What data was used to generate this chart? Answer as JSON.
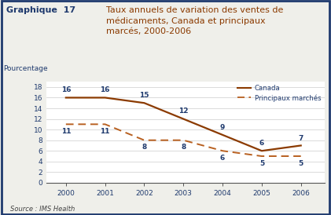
{
  "years": [
    2000,
    2001,
    2002,
    2003,
    2004,
    2005,
    2006
  ],
  "canada": [
    16,
    16,
    15,
    12,
    9,
    6,
    7
  ],
  "marches": [
    11,
    11,
    8,
    8,
    6,
    5,
    5
  ],
  "canada_labels": [
    "16",
    "16",
    "15",
    "12",
    "9",
    "6",
    "7"
  ],
  "marches_labels": [
    "11",
    "11",
    "8",
    "8",
    "6",
    "5",
    "5"
  ],
  "canada_color": "#8B3A00",
  "marches_color": "#B86020",
  "title_bold": "Graphique  17",
  "title_rest": "Taux annuels de variation des ventes de\nmédicaments, Canada et principaux\nmarcés, 2000-2006",
  "ylabel": "Pourcentage",
  "source": "Source : IMS Health",
  "legend_canada": "Canada",
  "legend_marches": "Principaux marchés",
  "ylim": [
    0,
    19
  ],
  "yticks": [
    0,
    2,
    4,
    6,
    8,
    10,
    12,
    14,
    16,
    18
  ],
  "bg_color": "#EFEFEA",
  "plot_bg": "#FFFFFF",
  "border_color": "#1F3A6E",
  "title_bold_color": "#1F3A6E",
  "title_rest_color": "#8B3A00",
  "label_color": "#1F3A6E",
  "axis_label_color": "#1F3A6E",
  "source_color": "#444444",
  "tick_color": "#555555",
  "gridline_color": "#CCCCCC"
}
